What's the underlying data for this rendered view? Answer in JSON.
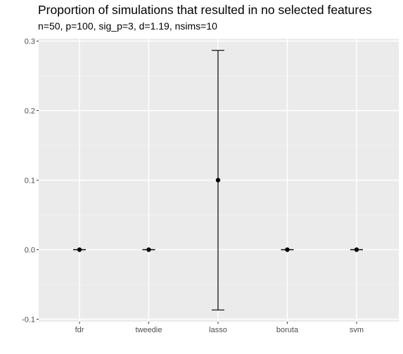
{
  "chart_data": {
    "type": "scatter",
    "title": "Proportion of simulations that resulted in no selected features",
    "subtitle": "n=50, p=100, sig_p=3, d=1.19, nsims=10",
    "xlabel": "",
    "ylabel": "",
    "categories": [
      "fdr",
      "tweedie",
      "lasso",
      "boruta",
      "svm"
    ],
    "values": [
      0.0,
      0.0,
      0.1,
      0.0,
      0.0
    ],
    "error_lower": [
      0.0,
      0.0,
      -0.0867,
      0.0,
      0.0
    ],
    "error_upper": [
      0.0,
      0.0,
      0.2867,
      0.0,
      0.0
    ],
    "ylim": [
      -0.1,
      0.3
    ],
    "yticks": [
      -0.1,
      0.0,
      0.1,
      0.2,
      0.3
    ],
    "ytick_labels": [
      "-0.1",
      "0.0",
      "0.1",
      "0.2",
      "0.3"
    ],
    "grid": true,
    "legend": "none",
    "colors": {
      "panel_background": "#ebebeb",
      "grid_major": "#ffffff",
      "grid_minor": "#f5f5f5",
      "points": "#000000",
      "tick_text": "#4d4d4d"
    }
  }
}
